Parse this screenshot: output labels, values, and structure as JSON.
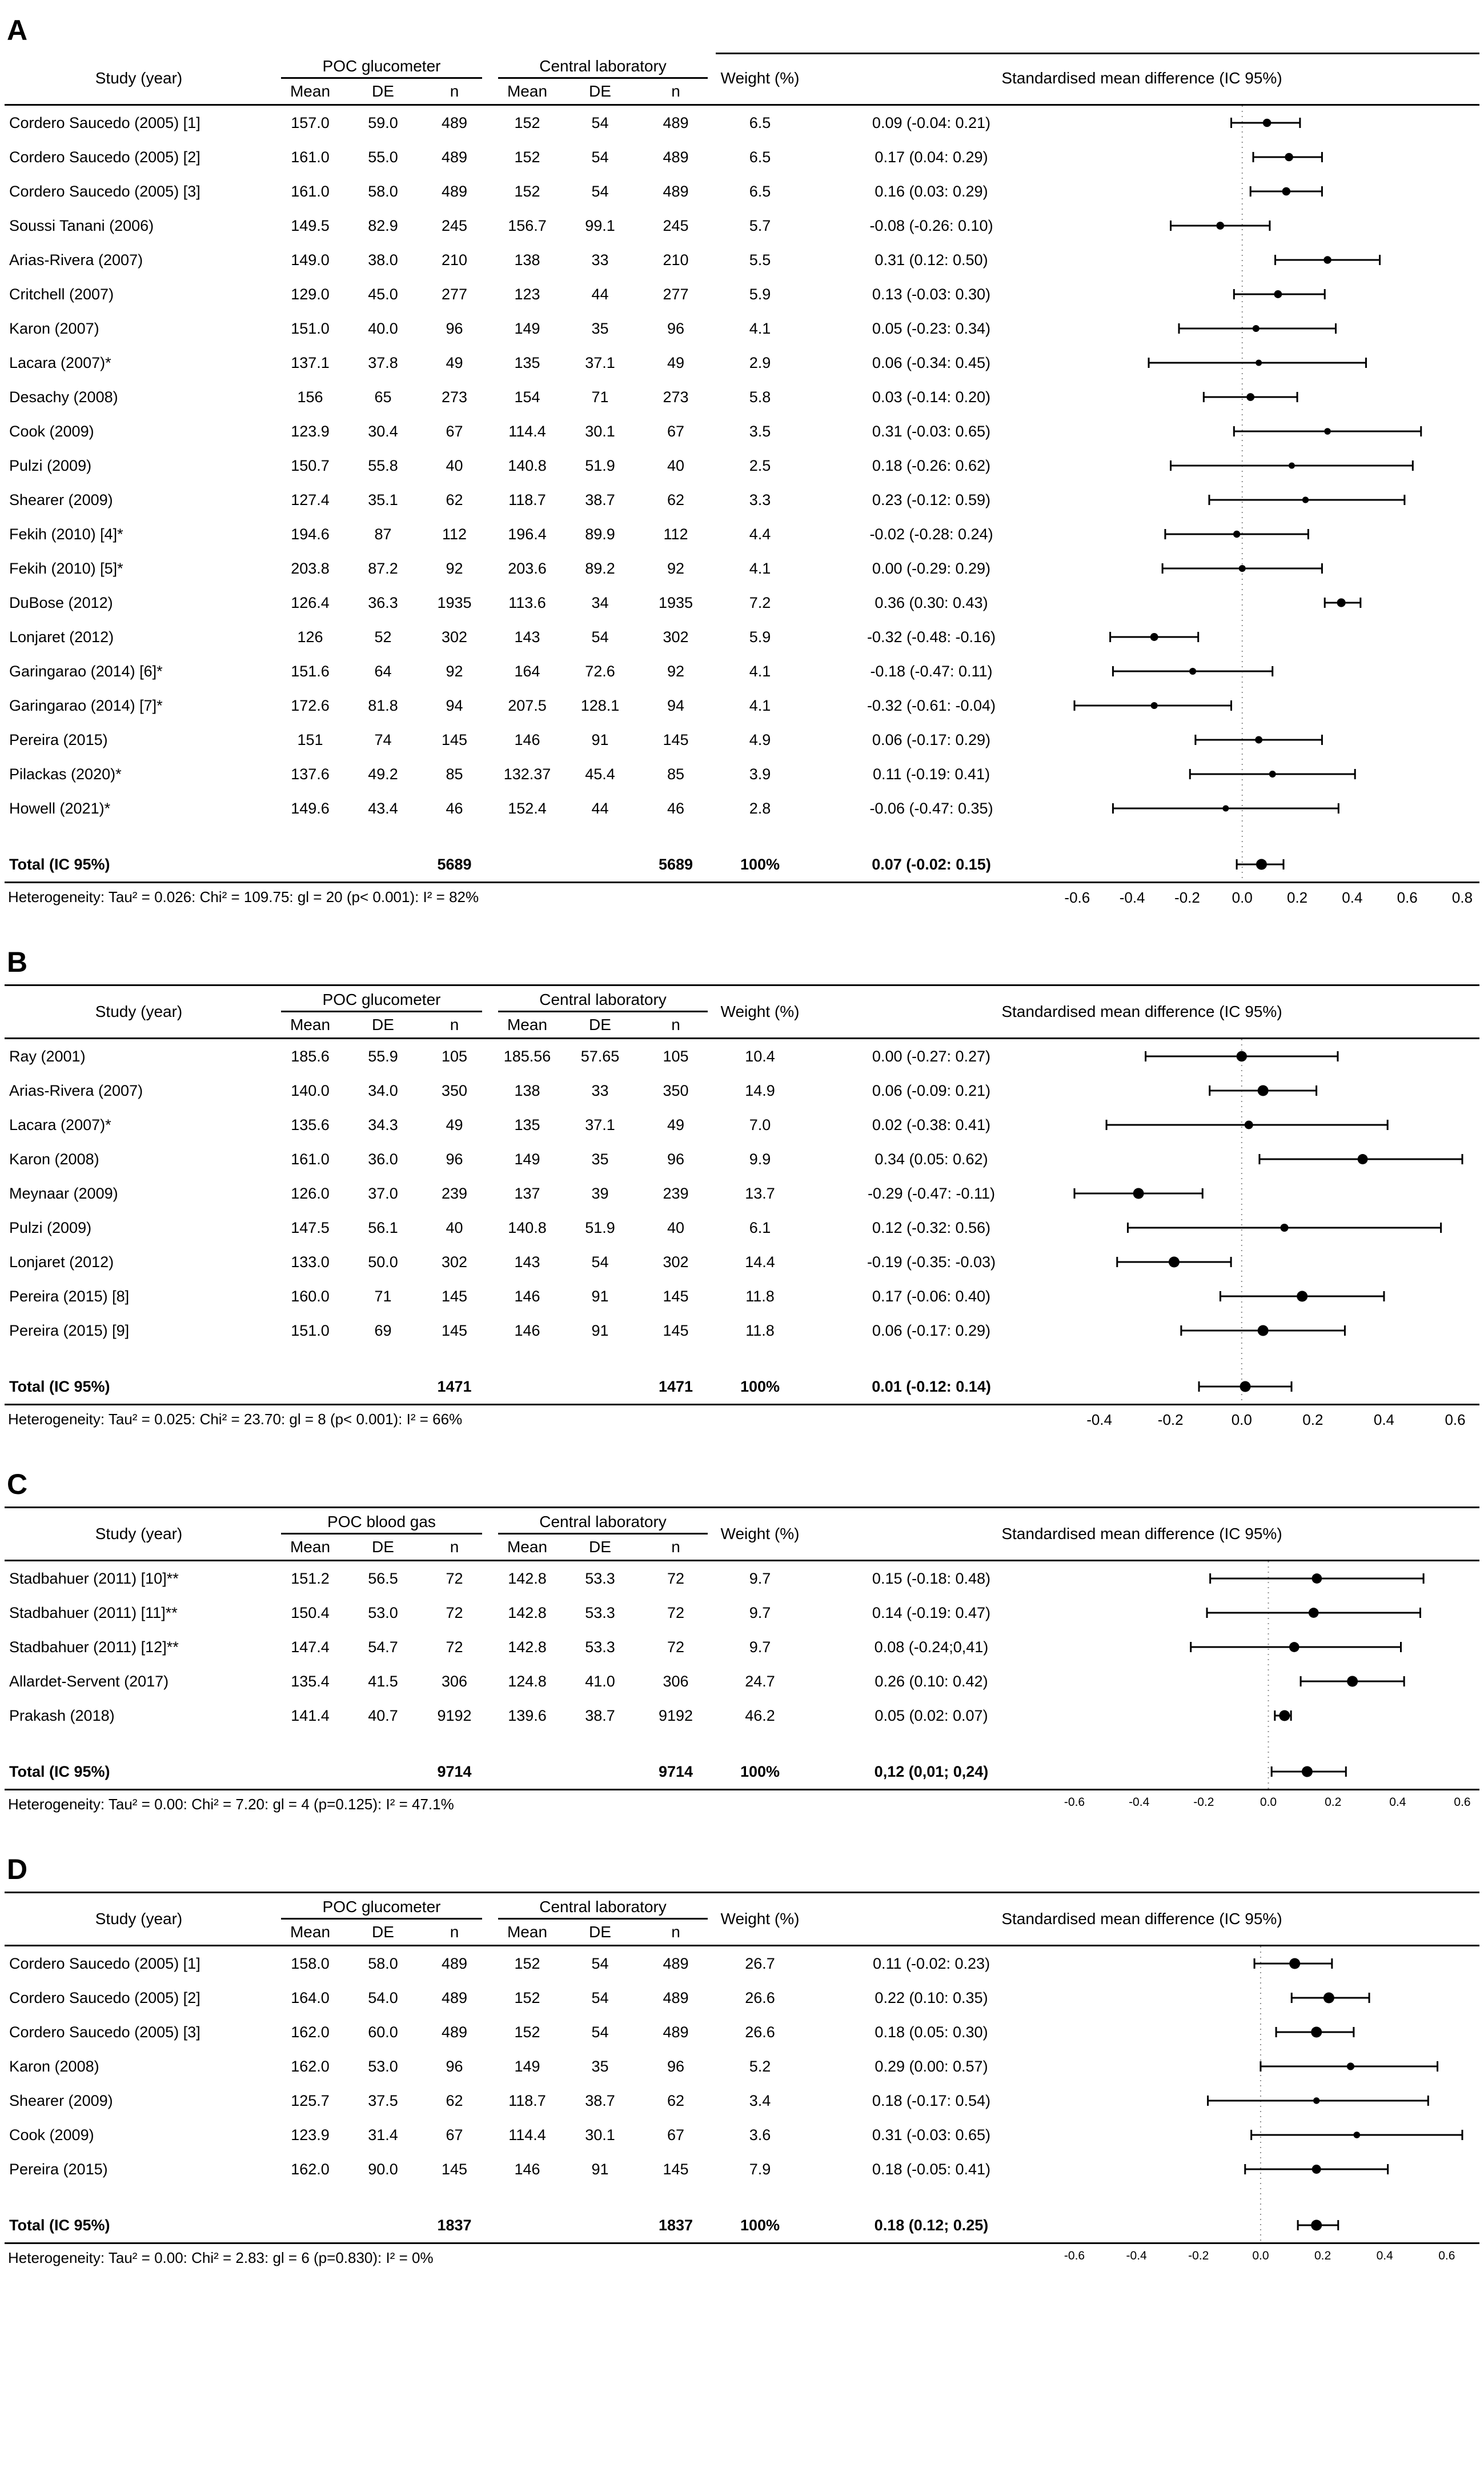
{
  "style": {
    "background": "#ffffff",
    "text": "#000000",
    "rule": "#000000",
    "marker": "#000000",
    "zero_line": "#8a8a8a"
  },
  "chart_data": [
    {
      "type": "scatter",
      "variant": "forest-plot",
      "panel": "A",
      "group1": "POC glucometer",
      "group2": "Central laboratory",
      "columns": {
        "study": "Study (year)",
        "mean": "Mean",
        "de": "DE",
        "n": "n",
        "weight": "Weight (%)",
        "smd": "Standardised mean difference (IC 95%)"
      },
      "studies": [
        {
          "study": "Cordero Saucedo (2005) [1]",
          "g1_mean": "157.0",
          "g1_de": "59.0",
          "g1_n": "489",
          "g2_mean": "152",
          "g2_de": "54",
          "g2_n": "489",
          "weight": "6.5",
          "smd_label": "0.09 (-0.04: 0.21)",
          "est": 0.09,
          "lo": -0.04,
          "hi": 0.21
        },
        {
          "study": "Cordero Saucedo (2005) [2]",
          "g1_mean": "161.0",
          "g1_de": "55.0",
          "g1_n": "489",
          "g2_mean": "152",
          "g2_de": "54",
          "g2_n": "489",
          "weight": "6.5",
          "smd_label": "0.17 (0.04: 0.29)",
          "est": 0.17,
          "lo": 0.04,
          "hi": 0.29
        },
        {
          "study": "Cordero Saucedo (2005) [3]",
          "g1_mean": "161.0",
          "g1_de": "58.0",
          "g1_n": "489",
          "g2_mean": "152",
          "g2_de": "54",
          "g2_n": "489",
          "weight": "6.5",
          "smd_label": "0.16 (0.03: 0.29)",
          "est": 0.16,
          "lo": 0.03,
          "hi": 0.29
        },
        {
          "study": "Soussi Tanani (2006)",
          "g1_mean": "149.5",
          "g1_de": "82.9",
          "g1_n": "245",
          "g2_mean": "156.7",
          "g2_de": "99.1",
          "g2_n": "245",
          "weight": "5.7",
          "smd_label": "-0.08 (-0.26: 0.10)",
          "est": -0.08,
          "lo": -0.26,
          "hi": 0.1
        },
        {
          "study": "Arias-Rivera (2007)",
          "g1_mean": "149.0",
          "g1_de": "38.0",
          "g1_n": "210",
          "g2_mean": "138",
          "g2_de": "33",
          "g2_n": "210",
          "weight": "5.5",
          "smd_label": "0.31 (0.12: 0.50)",
          "est": 0.31,
          "lo": 0.12,
          "hi": 0.5
        },
        {
          "study": "Critchell (2007)",
          "g1_mean": "129.0",
          "g1_de": "45.0",
          "g1_n": "277",
          "g2_mean": "123",
          "g2_de": "44",
          "g2_n": "277",
          "weight": "5.9",
          "smd_label": "0.13 (-0.03: 0.30)",
          "est": 0.13,
          "lo": -0.03,
          "hi": 0.3
        },
        {
          "study": "Karon (2007)",
          "g1_mean": "151.0",
          "g1_de": "40.0",
          "g1_n": "96",
          "g2_mean": "149",
          "g2_de": "35",
          "g2_n": "96",
          "weight": "4.1",
          "smd_label": "0.05 (-0.23: 0.34)",
          "est": 0.05,
          "lo": -0.23,
          "hi": 0.34
        },
        {
          "study": "Lacara (2007)*",
          "g1_mean": "137.1",
          "g1_de": "37.8",
          "g1_n": "49",
          "g2_mean": "135",
          "g2_de": "37.1",
          "g2_n": "49",
          "weight": "2.9",
          "smd_label": "0.06 (-0.34: 0.45)",
          "est": 0.06,
          "lo": -0.34,
          "hi": 0.45
        },
        {
          "study": "Desachy (2008)",
          "g1_mean": "156",
          "g1_de": "65",
          "g1_n": "273",
          "g2_mean": "154",
          "g2_de": "71",
          "g2_n": "273",
          "weight": "5.8",
          "smd_label": "0.03 (-0.14: 0.20)",
          "est": 0.03,
          "lo": -0.14,
          "hi": 0.2
        },
        {
          "study": "Cook (2009)",
          "g1_mean": "123.9",
          "g1_de": "30.4",
          "g1_n": "67",
          "g2_mean": "114.4",
          "g2_de": "30.1",
          "g2_n": "67",
          "weight": "3.5",
          "smd_label": "0.31 (-0.03: 0.65)",
          "est": 0.31,
          "lo": -0.03,
          "hi": 0.65
        },
        {
          "study": "Pulzi (2009)",
          "g1_mean": "150.7",
          "g1_de": "55.8",
          "g1_n": "40",
          "g2_mean": "140.8",
          "g2_de": "51.9",
          "g2_n": "40",
          "weight": "2.5",
          "smd_label": "0.18 (-0.26: 0.62)",
          "est": 0.18,
          "lo": -0.26,
          "hi": 0.62
        },
        {
          "study": "Shearer (2009)",
          "g1_mean": "127.4",
          "g1_de": "35.1",
          "g1_n": "62",
          "g2_mean": "118.7",
          "g2_de": "38.7",
          "g2_n": "62",
          "weight": "3.3",
          "smd_label": "0.23 (-0.12: 0.59)",
          "est": 0.23,
          "lo": -0.12,
          "hi": 0.59
        },
        {
          "study": "Fekih (2010) [4]*",
          "g1_mean": "194.6",
          "g1_de": "87",
          "g1_n": "112",
          "g2_mean": "196.4",
          "g2_de": "89.9",
          "g2_n": "112",
          "weight": "4.4",
          "smd_label": "-0.02 (-0.28: 0.24)",
          "est": -0.02,
          "lo": -0.28,
          "hi": 0.24
        },
        {
          "study": "Fekih (2010) [5]*",
          "g1_mean": "203.8",
          "g1_de": "87.2",
          "g1_n": "92",
          "g2_mean": "203.6",
          "g2_de": "89.2",
          "g2_n": "92",
          "weight": "4.1",
          "smd_label": "0.00 (-0.29: 0.29)",
          "est": 0.0,
          "lo": -0.29,
          "hi": 0.29
        },
        {
          "study": "DuBose (2012)",
          "g1_mean": "126.4",
          "g1_de": "36.3",
          "g1_n": "1935",
          "g2_mean": "113.6",
          "g2_de": "34",
          "g2_n": "1935",
          "weight": "7.2",
          "smd_label": "0.36 (0.30: 0.43)",
          "est": 0.36,
          "lo": 0.3,
          "hi": 0.43
        },
        {
          "study": "Lonjaret (2012)",
          "g1_mean": "126",
          "g1_de": "52",
          "g1_n": "302",
          "g2_mean": "143",
          "g2_de": "54",
          "g2_n": "302",
          "weight": "5.9",
          "smd_label": "-0.32 (-0.48: -0.16)",
          "est": -0.32,
          "lo": -0.48,
          "hi": -0.16
        },
        {
          "study": "Garingarao (2014) [6]*",
          "g1_mean": "151.6",
          "g1_de": "64",
          "g1_n": "92",
          "g2_mean": "164",
          "g2_de": "72.6",
          "g2_n": "92",
          "weight": "4.1",
          "smd_label": "-0.18 (-0.47: 0.11)",
          "est": -0.18,
          "lo": -0.47,
          "hi": 0.11
        },
        {
          "study": "Garingarao (2014) [7]*",
          "g1_mean": "172.6",
          "g1_de": "81.8",
          "g1_n": "94",
          "g2_mean": "207.5",
          "g2_de": "128.1",
          "g2_n": "94",
          "weight": "4.1",
          "smd_label": "-0.32 (-0.61: -0.04)",
          "est": -0.32,
          "lo": -0.61,
          "hi": -0.04
        },
        {
          "study": "Pereira (2015)",
          "g1_mean": "151",
          "g1_de": "74",
          "g1_n": "145",
          "g2_mean": "146",
          "g2_de": "91",
          "g2_n": "145",
          "weight": "4.9",
          "smd_label": "0.06 (-0.17: 0.29)",
          "est": 0.06,
          "lo": -0.17,
          "hi": 0.29
        },
        {
          "study": "Pilackas (2020)*",
          "g1_mean": "137.6",
          "g1_de": "49.2",
          "g1_n": "85",
          "g2_mean": "132.37",
          "g2_de": "45.4",
          "g2_n": "85",
          "weight": "3.9",
          "smd_label": "0.11 (-0.19: 0.41)",
          "est": 0.11,
          "lo": -0.19,
          "hi": 0.41
        },
        {
          "study": "Howell (2021)*",
          "g1_mean": "149.6",
          "g1_de": "43.4",
          "g1_n": "46",
          "g2_mean": "152.4",
          "g2_de": "44",
          "g2_n": "46",
          "weight": "2.8",
          "smd_label": "-0.06 (-0.47: 0.35)",
          "est": -0.06,
          "lo": -0.47,
          "hi": 0.35
        }
      ],
      "total": {
        "label": "Total (IC 95%)",
        "n1": "5689",
        "n2": "5689",
        "weight": "100%",
        "smd_label": "0.07 (-0.02: 0.15)",
        "est": 0.07,
        "lo": -0.02,
        "hi": 0.15
      },
      "heterogeneity": "Heterogeneity: Tau² = 0.026: Chi² = 109.75: gl = 20 (p< 0.001): I² = 82%",
      "axis": {
        "tick_values": [
          -0.6,
          -0.4,
          -0.2,
          0.0,
          0.2,
          0.4,
          0.6,
          0.8
        ],
        "tick_labels": [
          "-0.6",
          "-0.4",
          "-0.2",
          "0.0",
          "0.2",
          "0.4",
          "0.6",
          "0.8"
        ]
      }
    },
    {
      "type": "scatter",
      "variant": "forest-plot",
      "panel": "B",
      "group1": "POC glucometer",
      "group2": "Central laboratory",
      "columns": {
        "study": "Study (year)",
        "mean": "Mean",
        "de": "DE",
        "n": "n",
        "weight": "Weight (%)",
        "smd": "Standardised mean difference (IC 95%)"
      },
      "studies": [
        {
          "study": "Ray (2001)",
          "g1_mean": "185.6",
          "g1_de": "55.9",
          "g1_n": "105",
          "g2_mean": "185.56",
          "g2_de": "57.65",
          "g2_n": "105",
          "weight": "10.4",
          "smd_label": "0.00 (-0.27: 0.27)",
          "est": 0.0,
          "lo": -0.27,
          "hi": 0.27
        },
        {
          "study": "Arias-Rivera (2007)",
          "g1_mean": "140.0",
          "g1_de": "34.0",
          "g1_n": "350",
          "g2_mean": "138",
          "g2_de": "33",
          "g2_n": "350",
          "weight": "14.9",
          "smd_label": "0.06 (-0.09: 0.21)",
          "est": 0.06,
          "lo": -0.09,
          "hi": 0.21
        },
        {
          "study": "Lacara (2007)*",
          "g1_mean": "135.6",
          "g1_de": "34.3",
          "g1_n": "49",
          "g2_mean": "135",
          "g2_de": "37.1",
          "g2_n": "49",
          "weight": "7.0",
          "smd_label": "0.02 (-0.38: 0.41)",
          "est": 0.02,
          "lo": -0.38,
          "hi": 0.41
        },
        {
          "study": "Karon (2008)",
          "g1_mean": "161.0",
          "g1_de": "36.0",
          "g1_n": "96",
          "g2_mean": "149",
          "g2_de": "35",
          "g2_n": "96",
          "weight": "9.9",
          "smd_label": "0.34 (0.05: 0.62)",
          "est": 0.34,
          "lo": 0.05,
          "hi": 0.62
        },
        {
          "study": "Meynaar (2009)",
          "g1_mean": "126.0",
          "g1_de": "37.0",
          "g1_n": "239",
          "g2_mean": "137",
          "g2_de": "39",
          "g2_n": "239",
          "weight": "13.7",
          "smd_label": "-0.29 (-0.47: -0.11)",
          "est": -0.29,
          "lo": -0.47,
          "hi": -0.11
        },
        {
          "study": "Pulzi (2009)",
          "g1_mean": "147.5",
          "g1_de": "56.1",
          "g1_n": "40",
          "g2_mean": "140.8",
          "g2_de": "51.9",
          "g2_n": "40",
          "weight": "6.1",
          "smd_label": "0.12 (-0.32: 0.56)",
          "est": 0.12,
          "lo": -0.32,
          "hi": 0.56
        },
        {
          "study": "Lonjaret (2012)",
          "g1_mean": "133.0",
          "g1_de": "50.0",
          "g1_n": "302",
          "g2_mean": "143",
          "g2_de": "54",
          "g2_n": "302",
          "weight": "14.4",
          "smd_label": "-0.19 (-0.35: -0.03)",
          "est": -0.19,
          "lo": -0.35,
          "hi": -0.03
        },
        {
          "study": "Pereira (2015) [8]",
          "g1_mean": "160.0",
          "g1_de": "71",
          "g1_n": "145",
          "g2_mean": "146",
          "g2_de": "91",
          "g2_n": "145",
          "weight": "11.8",
          "smd_label": "0.17 (-0.06: 0.40)",
          "est": 0.17,
          "lo": -0.06,
          "hi": 0.4
        },
        {
          "study": "Pereira (2015) [9]",
          "g1_mean": "151.0",
          "g1_de": "69",
          "g1_n": "145",
          "g2_mean": "146",
          "g2_de": "91",
          "g2_n": "145",
          "weight": "11.8",
          "smd_label": "0.06 (-0.17: 0.29)",
          "est": 0.06,
          "lo": -0.17,
          "hi": 0.29
        }
      ],
      "total": {
        "label": "Total (IC 95%)",
        "n1": "1471",
        "n2": "1471",
        "weight": "100%",
        "smd_label": "0.01 (-0.12: 0.14)",
        "est": 0.01,
        "lo": -0.12,
        "hi": 0.14
      },
      "heterogeneity": "Heterogeneity: Tau² = 0.025: Chi² = 23.70: gl = 8 (p< 0.001): I² = 66%",
      "axis": {
        "tick_values": [
          -0.4,
          -0.2,
          0.0,
          0.2,
          0.4,
          0.6
        ],
        "tick_labels": [
          "-0.4",
          "-0.2",
          "0.0",
          "0.2",
          "0.4",
          "0.6"
        ]
      }
    },
    {
      "type": "scatter",
      "variant": "forest-plot",
      "panel": "C",
      "group1": "POC blood gas",
      "group2": "Central laboratory",
      "columns": {
        "study": "Study (year)",
        "mean": "Mean",
        "de": "DE",
        "n": "n",
        "weight": "Weight (%)",
        "smd": "Standardised mean difference (IC 95%)"
      },
      "studies": [
        {
          "study": "Stadbahuer (2011) [10]**",
          "g1_mean": "151.2",
          "g1_de": "56.5",
          "g1_n": "72",
          "g2_mean": "142.8",
          "g2_de": "53.3",
          "g2_n": "72",
          "weight": "9.7",
          "smd_label": "0.15 (-0.18: 0.48)",
          "est": 0.15,
          "lo": -0.18,
          "hi": 0.48
        },
        {
          "study": "Stadbahuer (2011) [11]**",
          "g1_mean": "150.4",
          "g1_de": "53.0",
          "g1_n": "72",
          "g2_mean": "142.8",
          "g2_de": "53.3",
          "g2_n": "72",
          "weight": "9.7",
          "smd_label": "0.14 (-0.19: 0.47)",
          "est": 0.14,
          "lo": -0.19,
          "hi": 0.47
        },
        {
          "study": "Stadbahuer (2011) [12]**",
          "g1_mean": "147.4",
          "g1_de": "54.7",
          "g1_n": "72",
          "g2_mean": "142.8",
          "g2_de": "53.3",
          "g2_n": "72",
          "weight": "9.7",
          "smd_label": "0.08 (-0.24;0,41)",
          "est": 0.08,
          "lo": -0.24,
          "hi": 0.41
        },
        {
          "study": "Allardet-Servent (2017)",
          "g1_mean": "135.4",
          "g1_de": "41.5",
          "g1_n": "306",
          "g2_mean": "124.8",
          "g2_de": "41.0",
          "g2_n": "306",
          "weight": "24.7",
          "smd_label": "0.26 (0.10: 0.42)",
          "est": 0.26,
          "lo": 0.1,
          "hi": 0.42
        },
        {
          "study": "Prakash (2018)",
          "g1_mean": "141.4",
          "g1_de": "40.7",
          "g1_n": "9192",
          "g2_mean": "139.6",
          "g2_de": "38.7",
          "g2_n": "9192",
          "weight": "46.2",
          "smd_label": "0.05 (0.02: 0.07)",
          "est": 0.05,
          "lo": 0.02,
          "hi": 0.07
        }
      ],
      "total": {
        "label": "Total (IC 95%)",
        "n1": "9714",
        "n2": "9714",
        "weight": "100%",
        "smd_label": "0,12 (0,01; 0,24)",
        "est": 0.12,
        "lo": 0.01,
        "hi": 0.24
      },
      "heterogeneity": "Heterogeneity: Tau² = 0.00: Chi² = 7.20: gl = 4 (p=0.125): I² = 47.1%",
      "axis": {
        "tick_values": [
          -0.6,
          -0.4,
          -0.2,
          0.0,
          0.2,
          0.4,
          0.6
        ],
        "tick_labels": [
          "-0.6",
          "-0.4",
          "-0.2",
          "0.0",
          "0.2",
          "0.4",
          "0.6"
        ]
      }
    },
    {
      "type": "scatter",
      "variant": "forest-plot",
      "panel": "D",
      "group1": "POC glucometer",
      "group2": "Central laboratory",
      "columns": {
        "study": "Study (year)",
        "mean": "Mean",
        "de": "DE",
        "n": "n",
        "weight": "Weight (%)",
        "smd": "Standardised mean difference (IC 95%)"
      },
      "studies": [
        {
          "study": "Cordero Saucedo (2005) [1]",
          "g1_mean": "158.0",
          "g1_de": "58.0",
          "g1_n": "489",
          "g2_mean": "152",
          "g2_de": "54",
          "g2_n": "489",
          "weight": "26.7",
          "smd_label": "0.11 (-0.02: 0.23)",
          "est": 0.11,
          "lo": -0.02,
          "hi": 0.23
        },
        {
          "study": "Cordero Saucedo (2005) [2]",
          "g1_mean": "164.0",
          "g1_de": "54.0",
          "g1_n": "489",
          "g2_mean": "152",
          "g2_de": "54",
          "g2_n": "489",
          "weight": "26.6",
          "smd_label": "0.22 (0.10: 0.35)",
          "est": 0.22,
          "lo": 0.1,
          "hi": 0.35
        },
        {
          "study": "Cordero Saucedo (2005) [3]",
          "g1_mean": "162.0",
          "g1_de": "60.0",
          "g1_n": "489",
          "g2_mean": "152",
          "g2_de": "54",
          "g2_n": "489",
          "weight": "26.6",
          "smd_label": "0.18 (0.05: 0.30)",
          "est": 0.18,
          "lo": 0.05,
          "hi": 0.3
        },
        {
          "study": "Karon (2008)",
          "g1_mean": "162.0",
          "g1_de": "53.0",
          "g1_n": "96",
          "g2_mean": "149",
          "g2_de": "35",
          "g2_n": "96",
          "weight": "5.2",
          "smd_label": "0.29 (0.00: 0.57)",
          "est": 0.29,
          "lo": 0.0,
          "hi": 0.57
        },
        {
          "study": "Shearer (2009)",
          "g1_mean": "125.7",
          "g1_de": "37.5",
          "g1_n": "62",
          "g2_mean": "118.7",
          "g2_de": "38.7",
          "g2_n": "62",
          "weight": "3.4",
          "smd_label": "0.18 (-0.17: 0.54)",
          "est": 0.18,
          "lo": -0.17,
          "hi": 0.54
        },
        {
          "study": "Cook (2009)",
          "g1_mean": "123.9",
          "g1_de": "31.4",
          "g1_n": "67",
          "g2_mean": "114.4",
          "g2_de": "30.1",
          "g2_n": "67",
          "weight": "3.6",
          "smd_label": "0.31 (-0.03: 0.65)",
          "est": 0.31,
          "lo": -0.03,
          "hi": 0.65
        },
        {
          "study": "Pereira (2015)",
          "g1_mean": "162.0",
          "g1_de": "90.0",
          "g1_n": "145",
          "g2_mean": "146",
          "g2_de": "91",
          "g2_n": "145",
          "weight": "7.9",
          "smd_label": "0.18 (-0.05: 0.41)",
          "est": 0.18,
          "lo": -0.05,
          "hi": 0.41
        }
      ],
      "total": {
        "label": "Total (IC 95%)",
        "n1": "1837",
        "n2": "1837",
        "weight": "100%",
        "smd_label": "0.18 (0.12; 0.25)",
        "est": 0.18,
        "lo": 0.12,
        "hi": 0.25
      },
      "heterogeneity": "Heterogeneity: Tau² = 0.00: Chi² = 2.83: gl = 6 (p=0.830): I² = 0%",
      "axis": {
        "tick_values": [
          -0.6,
          -0.4,
          -0.2,
          0.0,
          0.2,
          0.4,
          0.6
        ],
        "tick_labels": [
          "-0.6",
          "-0.4",
          "-0.2",
          "0.0",
          "0.2",
          "0.4",
          "0.6"
        ]
      }
    }
  ]
}
